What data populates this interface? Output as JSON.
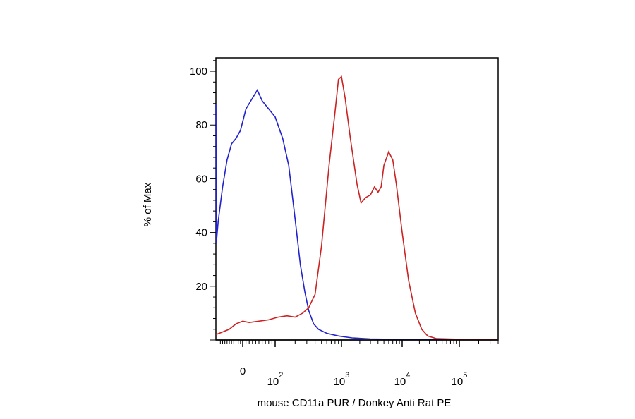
{
  "chart_data": {
    "type": "line",
    "title": "",
    "xlabel": "mouse CD11a PUR / Donkey Anti Rat PE",
    "ylabel": "% of Max",
    "x_scale": "biexponential",
    "x_range": [
      -120,
      400000
    ],
    "ylim": [
      0,
      105
    ],
    "y_ticks": [
      20,
      40,
      60,
      80,
      100
    ],
    "y_tick_labels": [
      "20",
      "40",
      "60",
      "80",
      "100"
    ],
    "x_ticks": [
      {
        "value": 0,
        "base": "0",
        "exp": ""
      },
      {
        "value": 100,
        "base": "10",
        "exp": "2"
      },
      {
        "value": 1000,
        "base": "10",
        "exp": "3"
      },
      {
        "value": 10000,
        "base": "10",
        "exp": "4"
      },
      {
        "value": 100000,
        "base": "10",
        "exp": "5"
      }
    ],
    "grid": false,
    "legend": "none",
    "series": [
      {
        "color": "#2222cc",
        "points": [
          [
            -120,
            88
          ],
          [
            -118,
            36
          ],
          [
            -110,
            44
          ],
          [
            -90,
            57
          ],
          [
            -70,
            67
          ],
          [
            -50,
            73
          ],
          [
            -30,
            75
          ],
          [
            -10,
            78
          ],
          [
            10,
            86
          ],
          [
            30,
            90
          ],
          [
            45,
            93
          ],
          [
            60,
            89
          ],
          [
            80,
            86
          ],
          [
            100,
            83
          ],
          [
            130,
            75
          ],
          [
            160,
            65
          ],
          [
            200,
            45
          ],
          [
            240,
            28
          ],
          [
            280,
            18
          ],
          [
            320,
            11
          ],
          [
            380,
            6
          ],
          [
            450,
            4
          ],
          [
            600,
            2.5
          ],
          [
            900,
            1.5
          ],
          [
            1500,
            0.8
          ],
          [
            3000,
            0.4
          ],
          [
            10000,
            0.2
          ],
          [
            100000,
            0.2
          ],
          [
            400000,
            0.2
          ]
        ]
      },
      {
        "color": "#cc2222",
        "points": [
          [
            -120,
            2
          ],
          [
            -90,
            3
          ],
          [
            -60,
            4
          ],
          [
            -30,
            6
          ],
          [
            0,
            7
          ],
          [
            20,
            6.5
          ],
          [
            50,
            7
          ],
          [
            80,
            7.5
          ],
          [
            110,
            8.5
          ],
          [
            150,
            9
          ],
          [
            200,
            8.5
          ],
          [
            260,
            10
          ],
          [
            320,
            12
          ],
          [
            400,
            17
          ],
          [
            500,
            35
          ],
          [
            650,
            65
          ],
          [
            800,
            85
          ],
          [
            900,
            97
          ],
          [
            1000,
            98
          ],
          [
            1150,
            90
          ],
          [
            1400,
            75
          ],
          [
            1800,
            58
          ],
          [
            2100,
            51
          ],
          [
            2500,
            53
          ],
          [
            3000,
            54
          ],
          [
            3500,
            57
          ],
          [
            4000,
            55
          ],
          [
            4500,
            57
          ],
          [
            5000,
            65
          ],
          [
            6000,
            70
          ],
          [
            7000,
            67
          ],
          [
            8000,
            58
          ],
          [
            10000,
            40
          ],
          [
            13000,
            22
          ],
          [
            17000,
            10
          ],
          [
            22000,
            4
          ],
          [
            28000,
            1.5
          ],
          [
            40000,
            0.5
          ],
          [
            100000,
            0.3
          ],
          [
            400000,
            0.3
          ]
        ]
      }
    ]
  }
}
